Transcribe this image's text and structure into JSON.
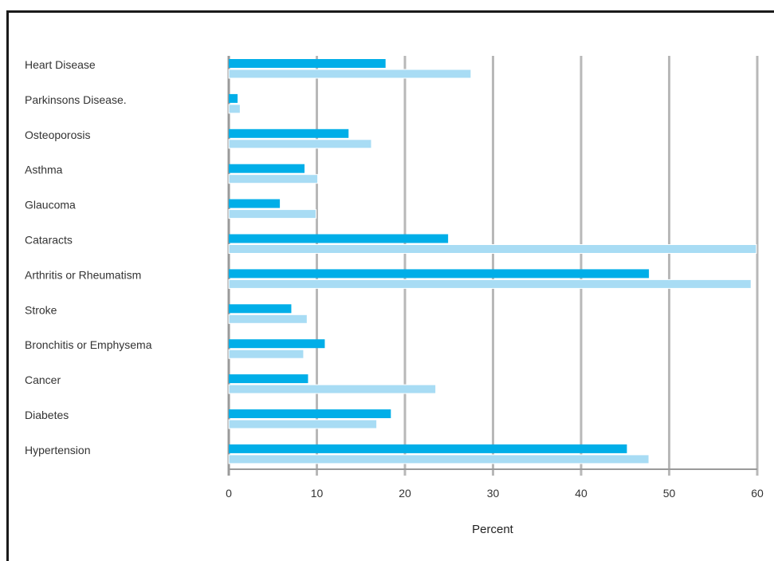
{
  "chart_data": {
    "type": "bar",
    "orientation": "horizontal",
    "title": "",
    "xlabel": "Percent",
    "ylabel": "",
    "xlim": [
      0,
      60
    ],
    "xticks": [
      "0",
      "10",
      "20",
      "30",
      "40",
      "50",
      "60"
    ],
    "grid": "vertical",
    "legend": "none",
    "categories": [
      "Heart Disease",
      "Parkinsons Disease.",
      "Osteoporosis",
      "Asthma",
      "Glaucoma",
      "Cataracts",
      "Arthritis or Rheumatism",
      "Stroke",
      "Bronchitis or Emphysema",
      "Cancer",
      "Diabetes",
      "Hypertension"
    ],
    "series": [
      {
        "color": "#00aee8",
        "values": [
          17.8,
          1.0,
          13.6,
          8.6,
          5.8,
          24.9,
          47.7,
          7.1,
          10.9,
          9.0,
          18.4,
          45.2
        ]
      },
      {
        "color": "#a8dcf4",
        "values": [
          27.5,
          1.3,
          16.2,
          10.1,
          9.9,
          59.9,
          59.3,
          8.9,
          8.5,
          23.5,
          16.8,
          47.7
        ]
      }
    ],
    "colors": {
      "grid": "#b8b8b8",
      "axis": "#9a9a9a",
      "frame": "#1a1a1a"
    }
  }
}
